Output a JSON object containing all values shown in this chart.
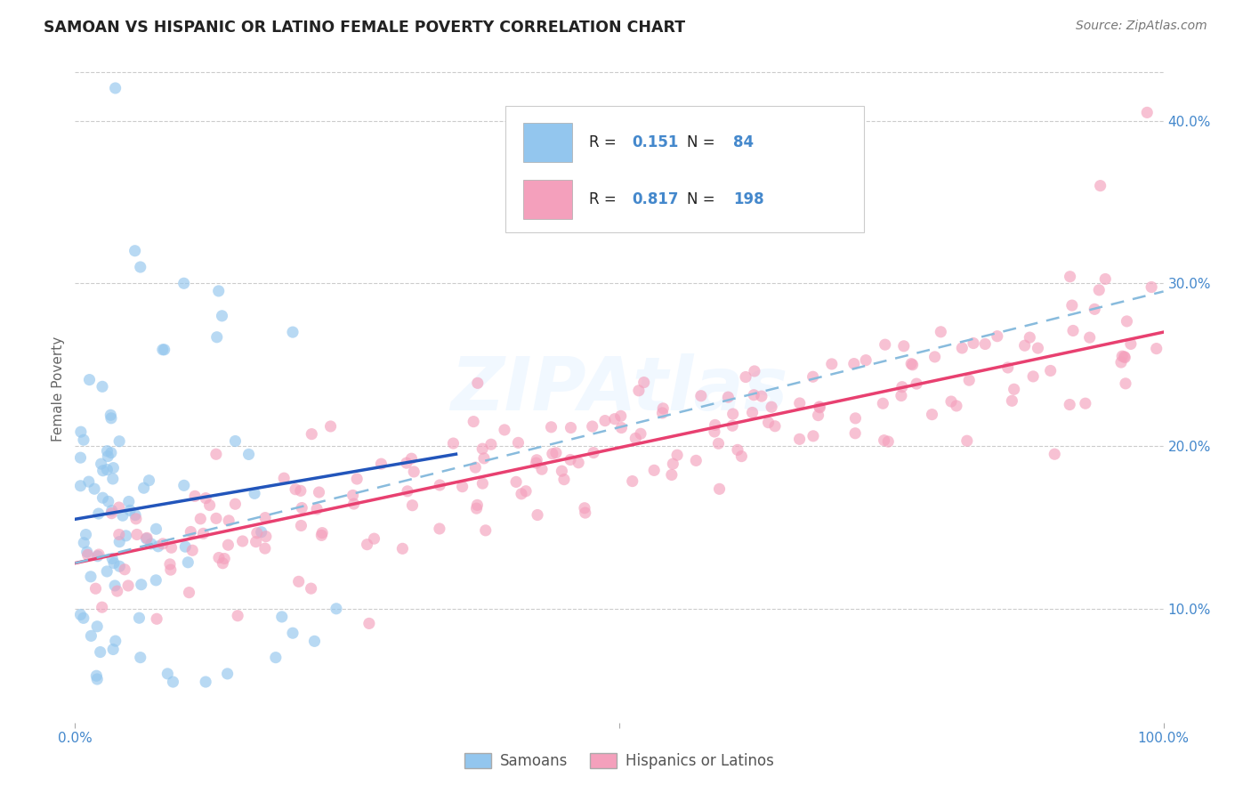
{
  "title": "SAMOAN VS HISPANIC OR LATINO FEMALE POVERTY CORRELATION CHART",
  "source": "Source: ZipAtlas.com",
  "ylabel": "Female Poverty",
  "xlim": [
    0,
    1.0
  ],
  "ylim": [
    0.03,
    0.44
  ],
  "y_ticks": [
    0.1,
    0.2,
    0.3,
    0.4
  ],
  "y_tick_labels": [
    "10.0%",
    "20.0%",
    "30.0%",
    "40.0%"
  ],
  "watermark": "ZIPAtlas",
  "blue_color": "#93C6EE",
  "pink_color": "#F4A0BC",
  "blue_line_color": "#2255BB",
  "pink_line_color": "#E84070",
  "dashed_line_color": "#88BBDD",
  "background_color": "#FFFFFF",
  "tick_color": "#4488CC",
  "samoans_label": "Samoans",
  "hispanics_label": "Hispanics or Latinos",
  "samoan_R": 0.151,
  "samoan_N": 84,
  "hispanic_R": 0.817,
  "hispanic_N": 198,
  "blue_line": [
    0.0,
    0.155,
    0.35,
    0.195
  ],
  "pink_line": [
    0.0,
    0.128,
    1.0,
    0.27
  ],
  "dashed_line": [
    0.0,
    0.128,
    1.0,
    0.295
  ],
  "grid_color": "#CCCCCC",
  "grid_linestyle": "--",
  "grid_linewidth": 0.8,
  "marker_size": 90,
  "marker_alpha": 0.65
}
